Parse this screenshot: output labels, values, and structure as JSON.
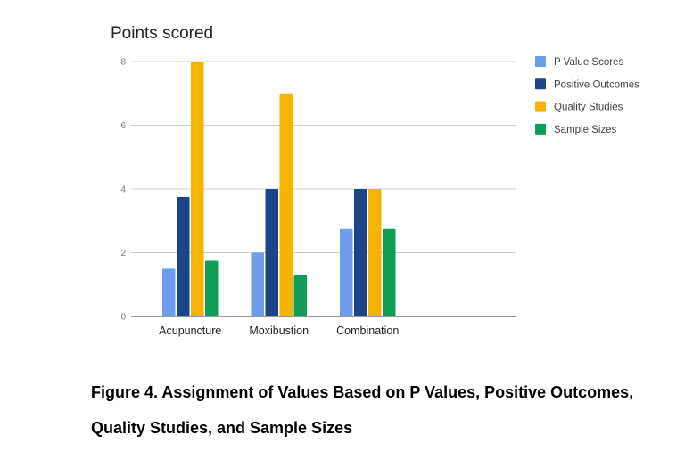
{
  "chart_data": {
    "type": "bar",
    "title": "Points scored",
    "xlabel": "",
    "ylabel": "",
    "ylim": [
      0,
      8
    ],
    "yticks": [
      0,
      2,
      4,
      6,
      8
    ],
    "grid": true,
    "legend_position": "right",
    "categories": [
      "Acupuncture",
      "Moxibustion",
      "Combination"
    ],
    "series": [
      {
        "name": "P Value Scores",
        "color": "#6d9eeb",
        "values": [
          1.5,
          2,
          2.75
        ]
      },
      {
        "name": "Positive Outcomes",
        "color": "#1c4587",
        "values": [
          3.75,
          4,
          4
        ]
      },
      {
        "name": "Quality Studies",
        "color": "#f4b400",
        "values": [
          8,
          7,
          4
        ]
      },
      {
        "name": "Sample Sizes",
        "color": "#0f9d58",
        "values": [
          1.75,
          1.3,
          2.75
        ]
      }
    ]
  },
  "caption": "Figure 4. Assignment of Values Based on P Values, Positive Outcomes, Quality Studies, and Sample Sizes"
}
